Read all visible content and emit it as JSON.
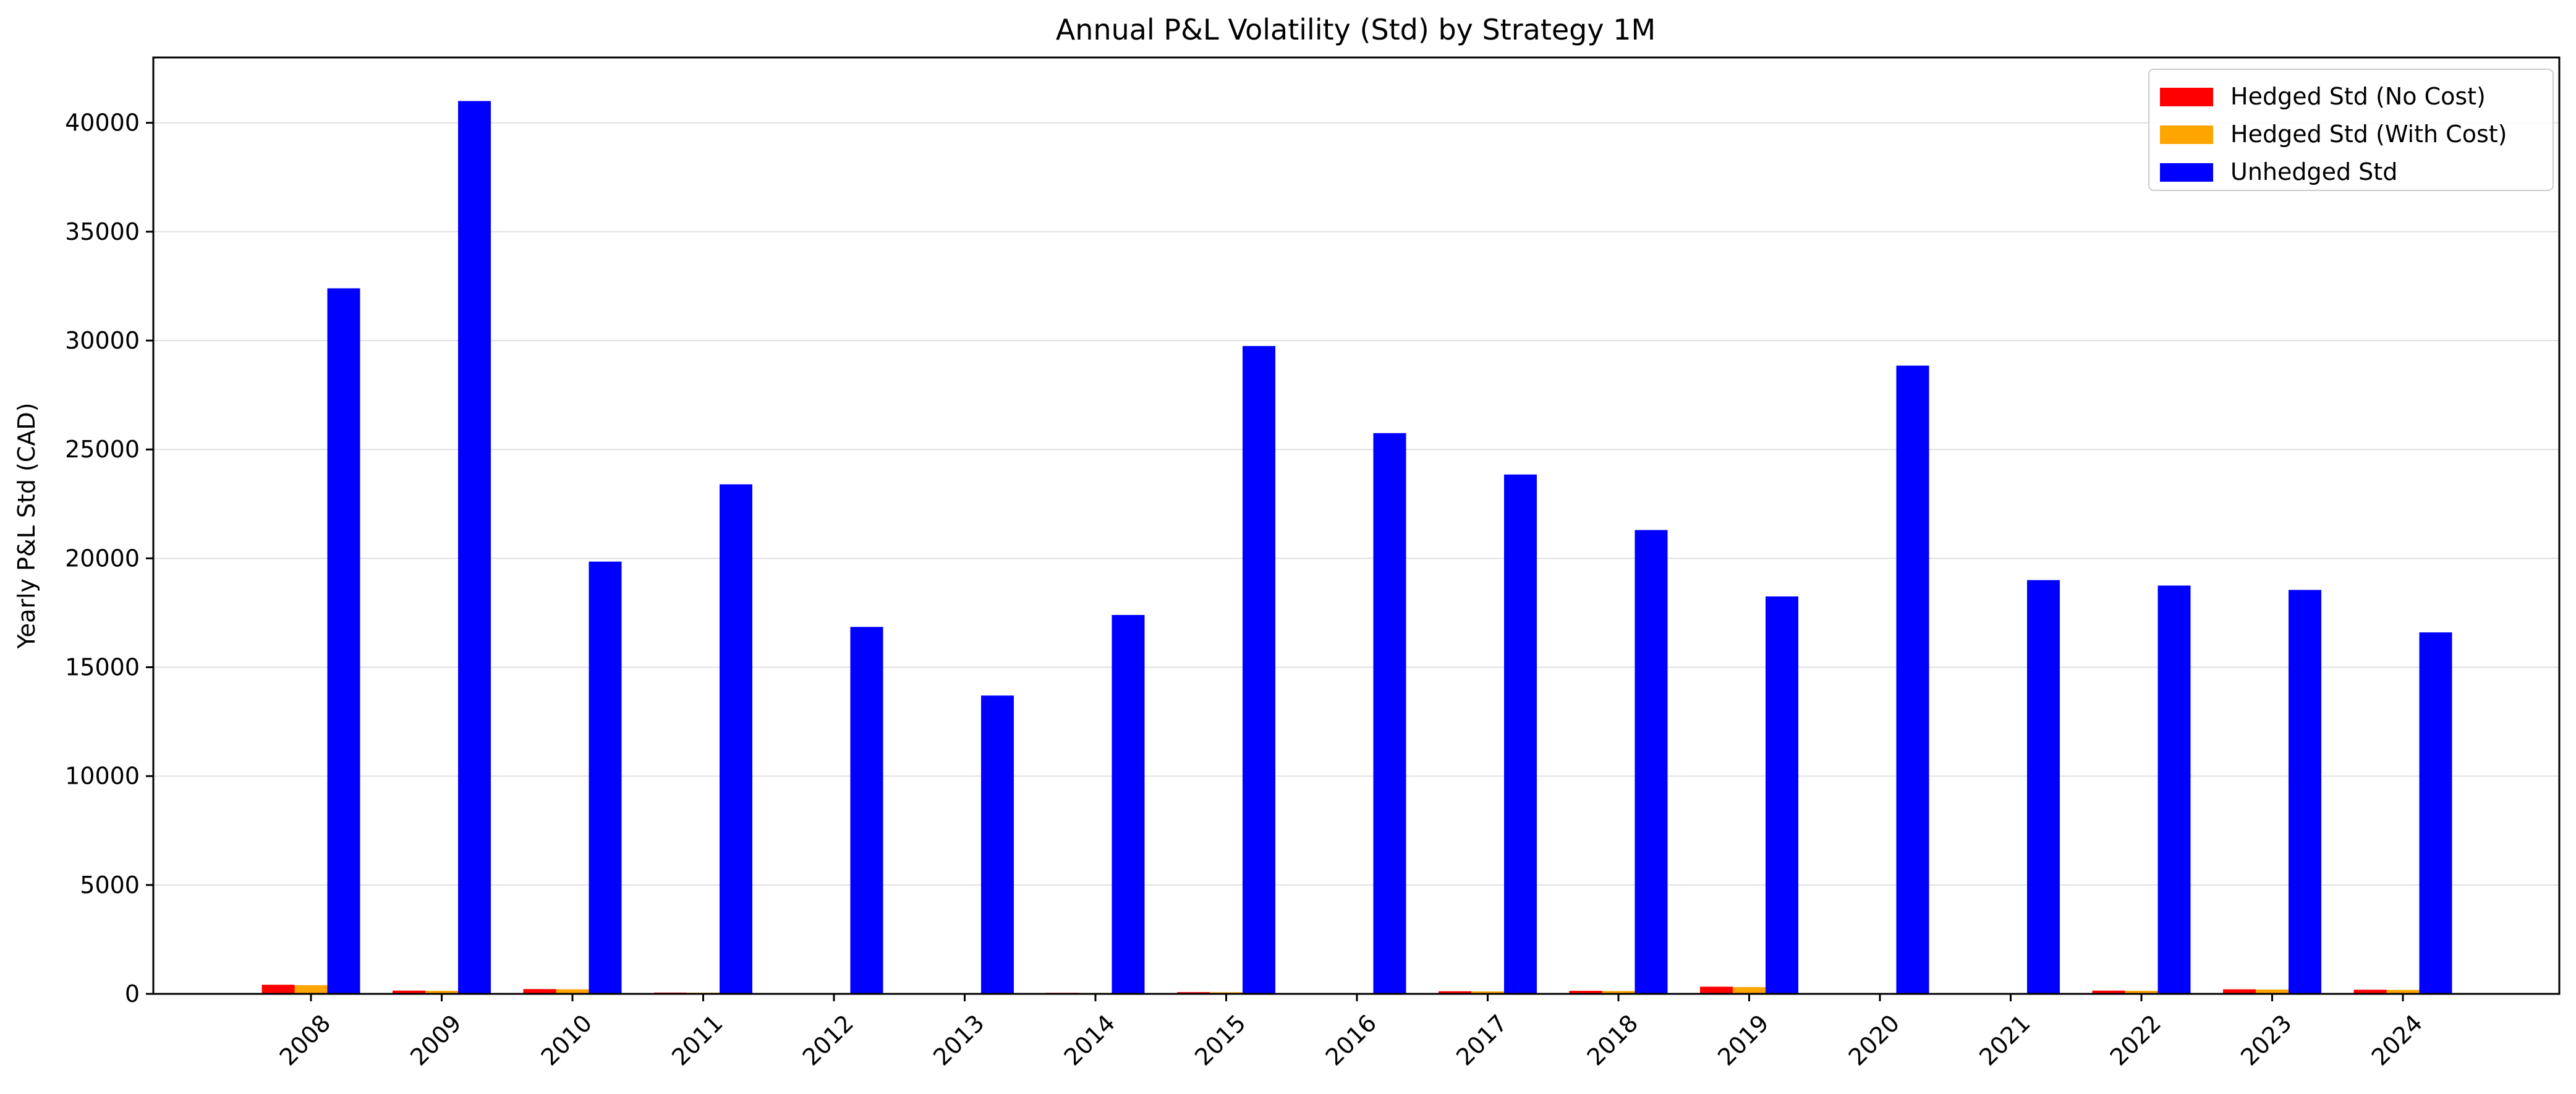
{
  "chart_data": {
    "type": "bar",
    "title": "Annual P&L Volatility (Std) by Strategy 1M",
    "xlabel": "",
    "ylabel": "Yearly P&L Std (CAD)",
    "ylim": [
      0,
      43000
    ],
    "yticks": [
      0,
      5000,
      10000,
      15000,
      20000,
      25000,
      30000,
      35000,
      40000
    ],
    "grid": "horizontal",
    "legend_position": "top-right",
    "categories": [
      "2008",
      "2009",
      "2010",
      "2011",
      "2012",
      "2013",
      "2014",
      "2015",
      "2016",
      "2017",
      "2018",
      "2019",
      "2020",
      "2021",
      "2022",
      "2023",
      "2024"
    ],
    "series": [
      {
        "name": "Hedged Std (No Cost)",
        "color": "#ff0000",
        "values": [
          420,
          150,
          220,
          60,
          20,
          40,
          50,
          80,
          40,
          120,
          140,
          330,
          30,
          30,
          150,
          210,
          190
        ]
      },
      {
        "name": "Hedged Std (With Cost)",
        "color": "#ffa500",
        "values": [
          400,
          140,
          210,
          55,
          20,
          35,
          45,
          75,
          35,
          110,
          130,
          310,
          25,
          25,
          140,
          200,
          180
        ]
      },
      {
        "name": "Unhedged Std",
        "color": "#0000ff",
        "values": [
          32400,
          41000,
          19850,
          23400,
          16850,
          13700,
          17400,
          29750,
          25750,
          23850,
          21300,
          18250,
          28850,
          19000,
          18750,
          18550,
          16600
        ]
      }
    ]
  }
}
